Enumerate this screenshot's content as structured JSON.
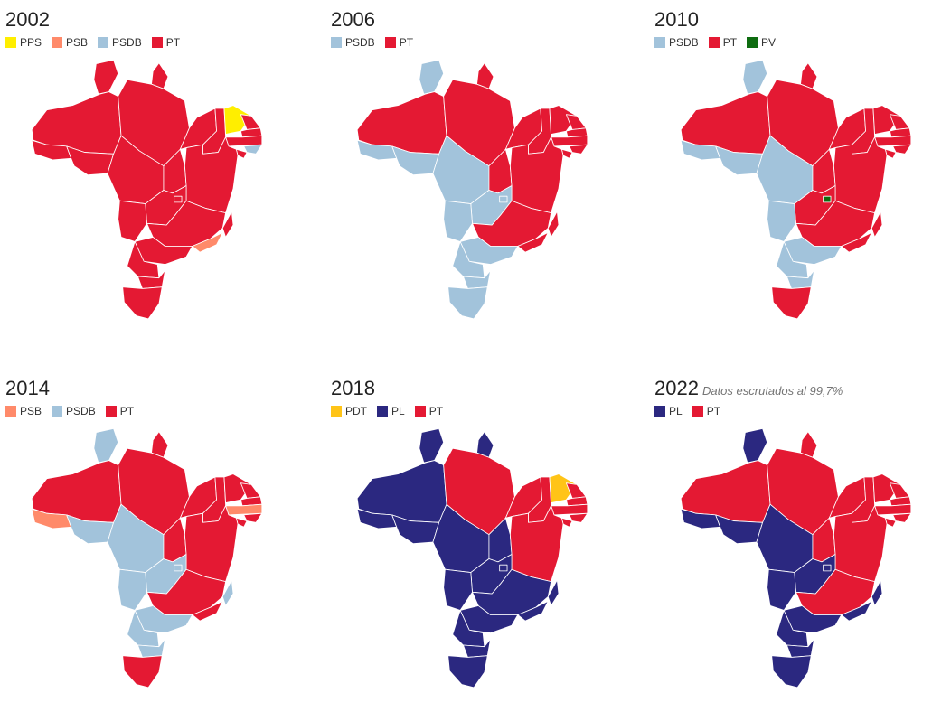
{
  "parties": {
    "PPS": {
      "label": "PPS",
      "color": "#FFEE00"
    },
    "PSB": {
      "label": "PSB",
      "color": "#FF8A6A"
    },
    "PSDB": {
      "label": "PSDB",
      "color": "#A2C3DB"
    },
    "PT": {
      "label": "PT",
      "color": "#E41933"
    },
    "PV": {
      "label": "PV",
      "color": "#0E6C10"
    },
    "PDT": {
      "label": "PDT",
      "color": "#FFC417"
    },
    "PL": {
      "label": "PL",
      "color": "#2B2880"
    }
  },
  "elections": [
    {
      "year": "2002",
      "note": "",
      "legend": [
        "PPS",
        "PSB",
        "PSDB",
        "PT"
      ],
      "states": {
        "RR": "PT",
        "AP": "PT",
        "AM": "PT",
        "PA": "PT",
        "AC": "PT",
        "RO": "PT",
        "TO": "PT",
        "MA": "PT",
        "PI": "PT",
        "CE": "PPS",
        "RN": "PT",
        "PB": "PT",
        "PE": "PT",
        "AL": "PSDB",
        "SE": "PT",
        "BA": "PT",
        "MT": "PT",
        "GO": "PT",
        "DF": "PT",
        "MS": "PT",
        "MG": "PT",
        "ES": "PT",
        "RJ": "PSB",
        "SP": "PT",
        "PR": "PT",
        "SC": "PT",
        "RS": "PT"
      }
    },
    {
      "year": "2006",
      "note": "",
      "legend": [
        "PSDB",
        "PT"
      ],
      "states": {
        "RR": "PSDB",
        "AP": "PT",
        "AM": "PT",
        "PA": "PT",
        "AC": "PSDB",
        "RO": "PSDB",
        "TO": "PT",
        "MA": "PT",
        "PI": "PT",
        "CE": "PT",
        "RN": "PT",
        "PB": "PT",
        "PE": "PT",
        "AL": "PT",
        "SE": "PT",
        "BA": "PT",
        "MT": "PSDB",
        "GO": "PSDB",
        "DF": "PSDB",
        "MS": "PSDB",
        "MG": "PT",
        "ES": "PT",
        "RJ": "PT",
        "SP": "PSDB",
        "PR": "PSDB",
        "SC": "PSDB",
        "RS": "PSDB"
      }
    },
    {
      "year": "2010",
      "note": "",
      "legend": [
        "PSDB",
        "PT",
        "PV"
      ],
      "states": {
        "RR": "PSDB",
        "AP": "PT",
        "AM": "PT",
        "PA": "PT",
        "AC": "PSDB",
        "RO": "PSDB",
        "TO": "PT",
        "MA": "PT",
        "PI": "PT",
        "CE": "PT",
        "RN": "PT",
        "PB": "PT",
        "PE": "PT",
        "AL": "PT",
        "SE": "PT",
        "BA": "PT",
        "MT": "PSDB",
        "GO": "PT",
        "DF": "PV",
        "MS": "PSDB",
        "MG": "PT",
        "ES": "PT",
        "RJ": "PT",
        "SP": "PSDB",
        "PR": "PSDB",
        "SC": "PSDB",
        "RS": "PT"
      }
    },
    {
      "year": "2014",
      "note": "",
      "legend": [
        "PSB",
        "PSDB",
        "PT"
      ],
      "states": {
        "RR": "PSDB",
        "AP": "PT",
        "AM": "PT",
        "PA": "PT",
        "AC": "PSB",
        "RO": "PSDB",
        "TO": "PT",
        "MA": "PT",
        "PI": "PT",
        "CE": "PT",
        "RN": "PT",
        "PB": "PT",
        "PE": "PSB",
        "AL": "PT",
        "SE": "PT",
        "BA": "PT",
        "MT": "PSDB",
        "GO": "PSDB",
        "DF": "PSDB",
        "MS": "PSDB",
        "MG": "PT",
        "ES": "PSDB",
        "RJ": "PT",
        "SP": "PSDB",
        "PR": "PSDB",
        "SC": "PSDB",
        "RS": "PT"
      }
    },
    {
      "year": "2018",
      "note": "",
      "legend": [
        "PDT",
        "PL",
        "PT"
      ],
      "states": {
        "RR": "PL",
        "AP": "PL",
        "AM": "PL",
        "PA": "PT",
        "AC": "PL",
        "RO": "PL",
        "TO": "PL",
        "MA": "PT",
        "PI": "PT",
        "CE": "PDT",
        "RN": "PT",
        "PB": "PT",
        "PE": "PT",
        "AL": "PT",
        "SE": "PT",
        "BA": "PT",
        "MT": "PL",
        "GO": "PL",
        "DF": "PL",
        "MS": "PL",
        "MG": "PL",
        "ES": "PL",
        "RJ": "PL",
        "SP": "PL",
        "PR": "PL",
        "SC": "PL",
        "RS": "PL"
      }
    },
    {
      "year": "2022",
      "note": "Datos escrutados al 99,7%",
      "legend": [
        "PL",
        "PT"
      ],
      "states": {
        "RR": "PL",
        "AP": "PT",
        "AM": "PT",
        "PA": "PT",
        "AC": "PL",
        "RO": "PL",
        "TO": "PT",
        "MA": "PT",
        "PI": "PT",
        "CE": "PT",
        "RN": "PT",
        "PB": "PT",
        "PE": "PT",
        "AL": "PT",
        "SE": "PT",
        "BA": "PT",
        "MT": "PL",
        "GO": "PL",
        "DF": "PL",
        "MS": "PL",
        "MG": "PT",
        "ES": "PL",
        "RJ": "PL",
        "SP": "PL",
        "PR": "PL",
        "SC": "PL",
        "RS": "PL"
      }
    }
  ]
}
